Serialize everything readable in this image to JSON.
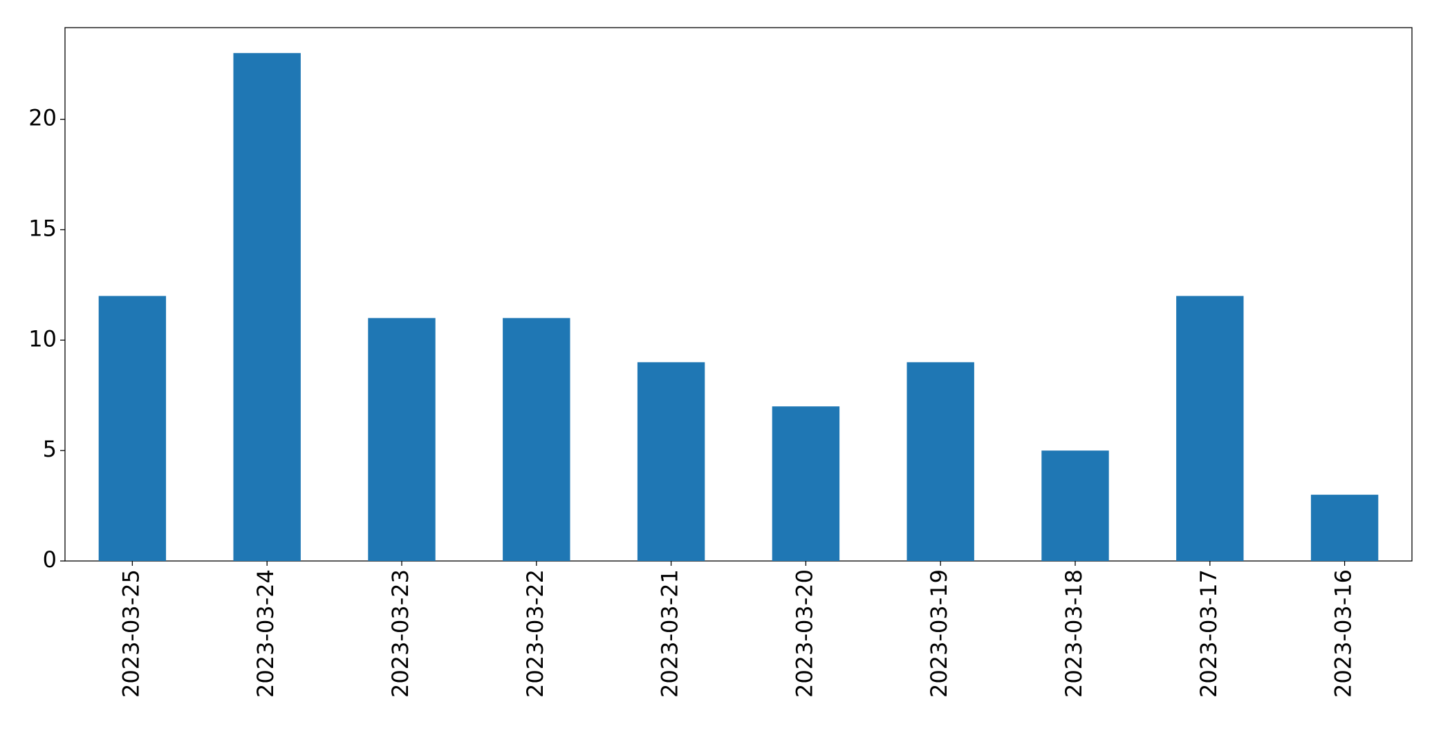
{
  "chart_data": {
    "type": "bar",
    "categories": [
      "2023-03-25",
      "2023-03-24",
      "2023-03-23",
      "2023-03-22",
      "2023-03-21",
      "2023-03-20",
      "2023-03-19",
      "2023-03-18",
      "2023-03-17",
      "2023-03-16"
    ],
    "values": [
      12,
      23,
      11,
      11,
      9,
      7,
      9,
      5,
      12,
      3
    ],
    "color": "#1f77b4",
    "ylim": [
      0,
      24.15
    ],
    "yticks": [
      0,
      5,
      10,
      15,
      20
    ],
    "grid": false
  }
}
